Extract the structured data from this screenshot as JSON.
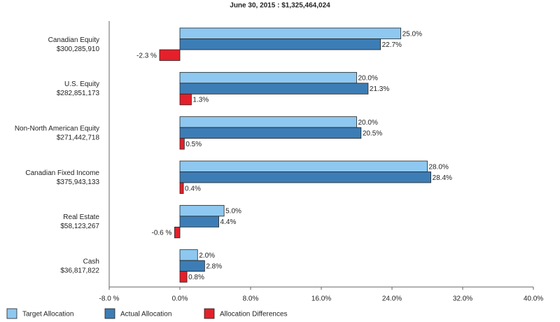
{
  "chart_data": {
    "type": "hbar-grouped",
    "title": "June 30, 2015 : $1,325,464,024",
    "categories": [
      "Canadian Equity",
      "U.S. Equity",
      "Non-North American Equity",
      "Canadian Fixed Income",
      "Real Estate",
      "Cash"
    ],
    "category_amounts": [
      "$300,285,910",
      "$282,851,173",
      "$271,442,718",
      "$375,943,133",
      "$58,123,267",
      "$36,817,822"
    ],
    "series": [
      {
        "name": "Target Allocation",
        "color": "#8ec8f0",
        "values": [
          25.0,
          20.0,
          20.0,
          28.0,
          5.0,
          2.0
        ],
        "value_labels": [
          "25.0%",
          "20.0%",
          "20.0%",
          "28.0%",
          "5.0%",
          "2.0%"
        ]
      },
      {
        "name": "Actual Allocation",
        "color": "#3d7db5",
        "values": [
          22.7,
          21.3,
          20.5,
          28.4,
          4.4,
          2.8
        ],
        "value_labels": [
          "22.7%",
          "21.3%",
          "20.5%",
          "28.4%",
          "4.4%",
          "2.8%"
        ]
      },
      {
        "name": "Allocation Differences",
        "color": "#e5202a",
        "values": [
          -2.3,
          1.3,
          0.5,
          0.4,
          -0.6,
          0.8
        ],
        "value_labels": [
          "-2.3 %",
          "1.3%",
          "0.5%",
          "0.4%",
          "-0.6 %",
          "0.8%"
        ]
      }
    ],
    "xlim": [
      -8,
      40
    ],
    "xticks": [
      {
        "value": -8,
        "label": "-8.0 %"
      },
      {
        "value": 0,
        "label": "0.0%"
      },
      {
        "value": 8,
        "label": "8.0%"
      },
      {
        "value": 16,
        "label": "16.0%"
      },
      {
        "value": 24,
        "label": "24.0%"
      },
      {
        "value": 32,
        "label": "32.0%"
      },
      {
        "value": 40,
        "label": "40.0%"
      }
    ]
  }
}
